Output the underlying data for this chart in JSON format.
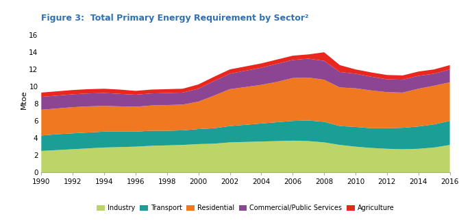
{
  "title": "Figure 3:  Total Primary Energy Requirement by Sector²",
  "ylabel": "Mtoe",
  "years": [
    1990,
    1991,
    1992,
    1993,
    1994,
    1995,
    1996,
    1997,
    1998,
    1999,
    2000,
    2001,
    2002,
    2003,
    2004,
    2005,
    2006,
    2007,
    2008,
    2009,
    2010,
    2011,
    2012,
    2013,
    2014,
    2015,
    2016
  ],
  "industry": [
    2.5,
    2.6,
    2.7,
    2.8,
    2.9,
    2.95,
    3.0,
    3.1,
    3.15,
    3.2,
    3.3,
    3.35,
    3.5,
    3.55,
    3.6,
    3.65,
    3.7,
    3.65,
    3.5,
    3.2,
    3.0,
    2.85,
    2.75,
    2.7,
    2.75,
    2.9,
    3.2
  ],
  "transport": [
    1.8,
    1.85,
    1.85,
    1.85,
    1.85,
    1.8,
    1.75,
    1.75,
    1.7,
    1.7,
    1.75,
    1.8,
    1.9,
    2.0,
    2.1,
    2.2,
    2.3,
    2.4,
    2.4,
    2.2,
    2.3,
    2.3,
    2.4,
    2.5,
    2.6,
    2.7,
    2.8
  ],
  "residential": [
    3.0,
    3.0,
    3.05,
    3.05,
    3.0,
    2.95,
    2.9,
    2.95,
    3.0,
    3.0,
    3.2,
    3.8,
    4.3,
    4.4,
    4.5,
    4.7,
    5.0,
    5.0,
    4.9,
    4.5,
    4.5,
    4.4,
    4.2,
    4.1,
    4.4,
    4.5,
    4.5
  ],
  "commercial": [
    1.5,
    1.5,
    1.5,
    1.5,
    1.5,
    1.45,
    1.4,
    1.4,
    1.4,
    1.4,
    1.5,
    1.7,
    1.8,
    1.9,
    2.0,
    2.1,
    2.1,
    2.2,
    2.2,
    1.8,
    1.7,
    1.6,
    1.5,
    1.5,
    1.5,
    1.4,
    1.5
  ],
  "agriculture": [
    0.5,
    0.5,
    0.5,
    0.5,
    0.5,
    0.5,
    0.45,
    0.45,
    0.45,
    0.45,
    0.5,
    0.5,
    0.5,
    0.5,
    0.5,
    0.5,
    0.5,
    0.5,
    1.0,
    0.8,
    0.5,
    0.5,
    0.5,
    0.5,
    0.5,
    0.5,
    0.5
  ],
  "colors": {
    "industry": "#bdd468",
    "transport": "#1a9e96",
    "residential": "#f07820",
    "commercial": "#8b4593",
    "agriculture": "#e8281e"
  },
  "ylim": [
    0,
    17
  ],
  "yticks": [
    0,
    2,
    4,
    6,
    8,
    10,
    12,
    14,
    16
  ],
  "background_color": "#ffffff",
  "title_color": "#3070b0",
  "title_fontsize": 9.0,
  "axis_fontsize": 7.5,
  "ylabel_fontsize": 8.0
}
